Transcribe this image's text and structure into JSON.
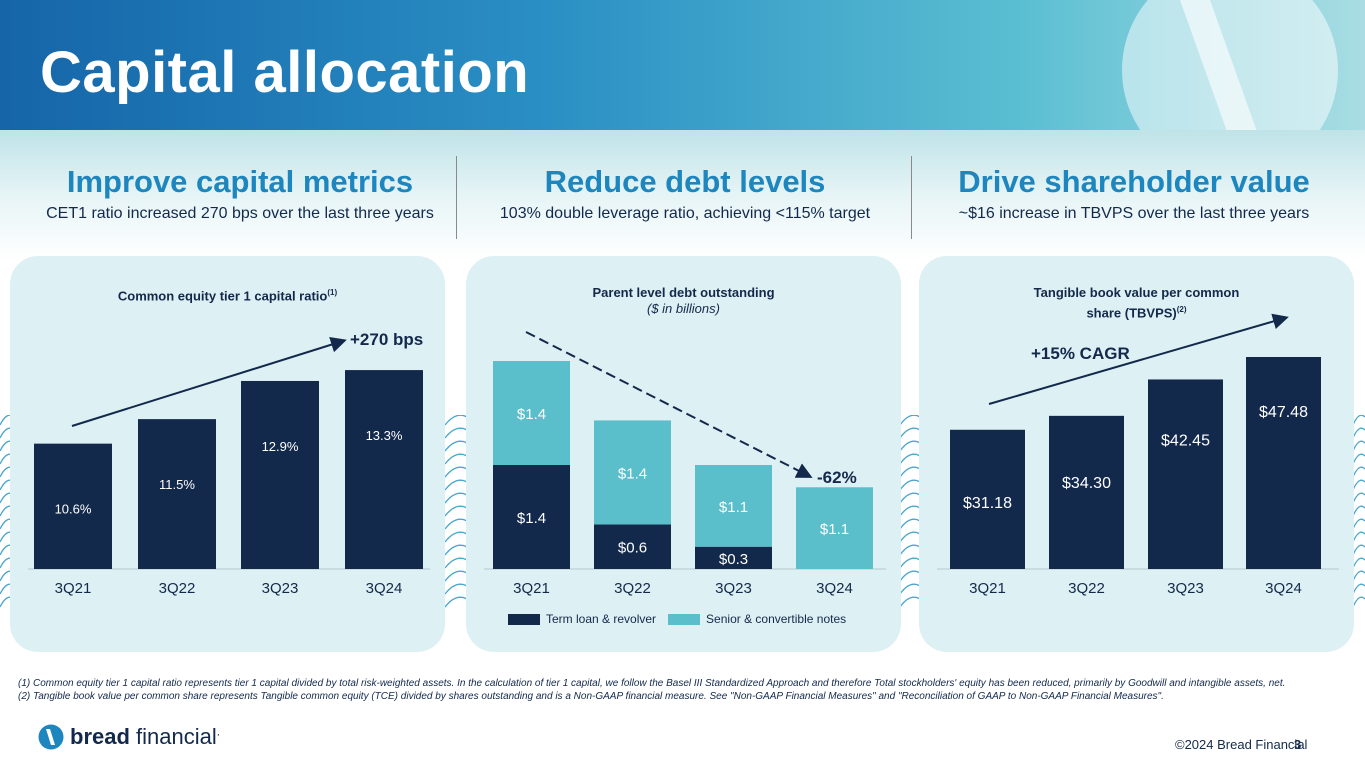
{
  "title": "Capital allocation",
  "pillars": [
    {
      "heading": "Improve capital metrics",
      "text": "CET1 ratio increased 270 bps over the last three years"
    },
    {
      "heading": "Reduce debt levels",
      "text": "103% double leverage ratio, achieving <115% target"
    },
    {
      "heading": "Drive shareholder value",
      "text": "~$16 increase in TBVPS over the last three years"
    }
  ],
  "colors": {
    "navy": "#13294b",
    "teal": "#5bbfcb",
    "accent_blue": "#1e86bf",
    "panel": "#ddf0f3"
  },
  "panels": {
    "cet1": {
      "title": "Common equity tier 1 capital ratio",
      "sup": "(1)",
      "callout": "+270 bps"
    },
    "debt": {
      "title": "Parent level debt outstanding",
      "subtitle": "($ in billions)",
      "callout": "-62%",
      "legend_term": "Term loan & revolver",
      "legend_senior": "Senior & convertible notes"
    },
    "tbv": {
      "title": "Tangible book value per common share (TBVPS)",
      "sup": "(2)",
      "callout": "+15% CAGR"
    }
  },
  "chart_data": [
    {
      "type": "bar",
      "title": "Common equity tier 1 capital ratio",
      "categories": [
        "3Q21",
        "3Q22",
        "3Q23",
        "3Q24"
      ],
      "values": [
        10.6,
        11.5,
        12.9,
        13.3
      ],
      "labels": [
        "10.6%",
        "11.5%",
        "12.9%",
        "13.3%"
      ],
      "annotation": "+270 bps"
    },
    {
      "type": "bar",
      "stacked": true,
      "title": "Parent level debt outstanding",
      "subtitle": "($ in billions)",
      "categories": [
        "3Q21",
        "3Q22",
        "3Q23",
        "3Q24"
      ],
      "series": [
        {
          "name": "Term loan & revolver",
          "values": [
            1.4,
            0.6,
            0.3,
            0
          ],
          "labels": [
            "$1.4",
            "$0.6",
            "$0.3",
            ""
          ]
        },
        {
          "name": "Senior & convertible notes",
          "values": [
            1.4,
            1.4,
            1.1,
            1.1
          ],
          "labels": [
            "$1.4",
            "$1.4",
            "$1.1",
            "$1.1"
          ]
        }
      ],
      "annotation": "-62%"
    },
    {
      "type": "bar",
      "title": "Tangible book value per common share (TBVPS)",
      "categories": [
        "3Q21",
        "3Q22",
        "3Q23",
        "3Q24"
      ],
      "values": [
        31.18,
        34.3,
        42.45,
        47.48
      ],
      "labels": [
        "$31.18",
        "$34.30",
        "$42.45",
        "$47.48"
      ],
      "annotation": "+15% CAGR"
    }
  ],
  "footnotes": [
    "(1) Common equity tier 1 capital ratio represents tier 1 capital divided by total risk-weighted assets. In the calculation of tier 1 capital, we follow the Basel III Standardized Approach and therefore Total stockholders' equity has been reduced, primarily by Goodwill and intangible assets, net.",
    "(2) Tangible book value per common share represents Tangible common equity (TCE) divided by shares outstanding and is a Non-GAAP financial measure. See \"Non-GAAP Financial Measures\" and \"Reconciliation of GAAP to Non-GAAP Financial Measures\"."
  ],
  "brand": {
    "bold": "bread",
    "rest": " financial",
    "mark": "."
  },
  "copyright": "©2024 Bread Financial",
  "page_number": "3"
}
